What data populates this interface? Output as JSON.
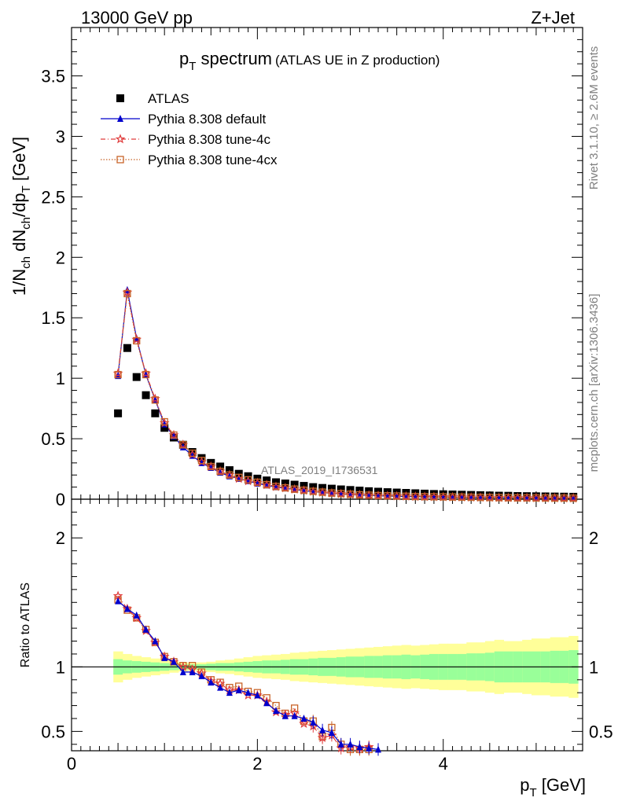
{
  "header": {
    "left": "13000 GeV pp",
    "right": "Z+Jet"
  },
  "side_labels": {
    "rivet": "Rivet 3.1.10, ≥ 2.6M events",
    "mcplots": "mcplots.cern.ch [arXiv:1306.3436]"
  },
  "watermark": "ATLAS_2019_I1736531",
  "colors": {
    "atlas": "#000000",
    "default": "#0000cc",
    "tune4c": "#e03c3c",
    "tune4cx": "#c86428",
    "band_inner": "#99ff99",
    "band_outer": "#ffff99"
  },
  "chart_data": {
    "type": "scatter",
    "title": "p_T spectrum",
    "title_main": "p",
    "title_sub": "T",
    "title_rest": " spectrum",
    "title_note": "(ATLAS UE in Z production)",
    "xlabel_main": "p",
    "xlabel_sub": "T",
    "xlabel_unit": " [GeV]",
    "ylabel": "1/N_ch dN_ch/dp_T [GeV]",
    "ylabel_parts": {
      "a": "1/N",
      "b": "ch",
      "c": " dN",
      "d": "ch",
      "e": "/dp",
      "f": "T",
      "g": " [GeV]"
    },
    "ratio_ylabel": "Ratio to ATLAS",
    "xlim": [
      0,
      5.5
    ],
    "ylim": [
      0,
      3.9
    ],
    "ratio_ylim": [
      0.35,
      2.3
    ],
    "x_ticks": [
      0,
      2,
      4
    ],
    "y_ticks": [
      0,
      0.5,
      1,
      1.5,
      2,
      2.5,
      3,
      3.5
    ],
    "y_tick_labels": [
      "0",
      "0.5",
      "1",
      "1.5",
      "2",
      "2.5",
      "3",
      "3.5"
    ],
    "ratio_ticks": [
      0.5,
      1,
      2
    ],
    "ratio_tick_labels": [
      "0.5",
      "1",
      "2"
    ],
    "x_tick_labels": [
      "0",
      "2",
      "4"
    ],
    "legend_position": "top-left",
    "x": [
      0.5,
      0.6,
      0.7,
      0.8,
      0.9,
      1.0,
      1.1,
      1.2,
      1.3,
      1.4,
      1.5,
      1.6,
      1.7,
      1.8,
      1.9,
      2.0,
      2.1,
      2.2,
      2.3,
      2.4,
      2.5,
      2.6,
      2.7,
      2.8,
      2.9,
      3.0,
      3.1,
      3.2,
      3.3,
      3.4,
      3.5,
      3.6,
      3.7,
      3.8,
      3.9,
      4.0,
      4.1,
      4.2,
      4.3,
      4.4,
      4.5,
      4.6,
      4.7,
      4.8,
      4.9,
      5.0,
      5.1,
      5.2,
      5.3,
      5.4
    ],
    "series": [
      {
        "name": "ATLAS",
        "marker": "square",
        "values": [
          0.71,
          1.25,
          1.01,
          0.86,
          0.71,
          0.59,
          0.51,
          0.45,
          0.39,
          0.34,
          0.3,
          0.27,
          0.24,
          0.21,
          0.19,
          0.17,
          0.155,
          0.14,
          0.13,
          0.12,
          0.11,
          0.1,
          0.093,
          0.087,
          0.081,
          0.076,
          0.071,
          0.066,
          0.062,
          0.058,
          0.055,
          0.052,
          0.049,
          0.046,
          0.043,
          0.041,
          0.039,
          0.037,
          0.035,
          0.033,
          0.031,
          0.029,
          0.028,
          0.026,
          0.025,
          0.024,
          0.023,
          0.022,
          0.021,
          0.02
        ]
      },
      {
        "name": "Pythia 8.308 default",
        "marker": "triangle",
        "line": "solid",
        "values": [
          1.02,
          1.73,
          1.33,
          1.03,
          0.82,
          0.62,
          0.52,
          0.43,
          0.36,
          0.3,
          0.26,
          0.22,
          0.19,
          0.17,
          0.15,
          0.13,
          0.115,
          0.1,
          0.09,
          0.08,
          0.07,
          0.062,
          0.055,
          0.048,
          0.043,
          0.038,
          0.034,
          0.031,
          0.028,
          0.026,
          0.024,
          0.022,
          0.02,
          0.019,
          0.018,
          0.017,
          0.016,
          0.015,
          0.014,
          0.013,
          0.012,
          0.012,
          0.011,
          0.01,
          0.01,
          0.009,
          0.009,
          0.008,
          0.008,
          0.008
        ]
      },
      {
        "name": "Pythia 8.308 tune-4c",
        "marker": "star",
        "line": "dashdot",
        "values": [
          1.04,
          1.71,
          1.32,
          1.04,
          0.83,
          0.63,
          0.53,
          0.45,
          0.37,
          0.31,
          0.27,
          0.23,
          0.2,
          0.17,
          0.15,
          0.135,
          0.118,
          0.103,
          0.092,
          0.081,
          0.072,
          0.063,
          0.056,
          0.049,
          0.044,
          0.039,
          0.035,
          0.032,
          0.029,
          0.027,
          0.025,
          0.023,
          0.021,
          0.02,
          0.019,
          0.018,
          0.017,
          0.016,
          0.015,
          0.014,
          0.013,
          0.012,
          0.011,
          0.011,
          0.01,
          0.01,
          0.009,
          0.009,
          0.008,
          0.008
        ]
      },
      {
        "name": "Pythia 8.308 tune-4cx",
        "marker": "opensquare",
        "line": "dotted",
        "values": [
          1.03,
          1.7,
          1.31,
          1.03,
          0.82,
          0.64,
          0.53,
          0.45,
          0.38,
          0.32,
          0.27,
          0.23,
          0.2,
          0.18,
          0.16,
          0.14,
          0.12,
          0.105,
          0.094,
          0.083,
          0.074,
          0.065,
          0.058,
          0.051,
          0.046,
          0.041,
          0.036,
          0.033,
          0.03,
          0.028,
          0.026,
          0.024,
          0.022,
          0.021,
          0.02,
          0.019,
          0.018,
          0.017,
          0.016,
          0.015,
          0.014,
          0.013,
          0.012,
          0.011,
          0.011,
          0.01,
          0.01,
          0.009,
          0.009,
          0.008
        ]
      }
    ],
    "ratio": {
      "default": [
        [
          0.5,
          1.51
        ],
        [
          0.6,
          1.45
        ],
        [
          0.7,
          1.4
        ],
        [
          0.8,
          1.29
        ],
        [
          0.9,
          1.2
        ],
        [
          1.0,
          1.07
        ],
        [
          1.1,
          1.04
        ],
        [
          1.2,
          0.96
        ],
        [
          1.3,
          0.96
        ],
        [
          1.4,
          0.93
        ],
        [
          1.5,
          0.88
        ],
        [
          1.6,
          0.84
        ],
        [
          1.7,
          0.8
        ],
        [
          1.8,
          0.82
        ],
        [
          1.9,
          0.8
        ],
        [
          2.0,
          0.78
        ],
        [
          2.1,
          0.72
        ],
        [
          2.2,
          0.66
        ],
        [
          2.3,
          0.62
        ],
        [
          2.4,
          0.62
        ],
        [
          2.5,
          0.6
        ],
        [
          2.6,
          0.57
        ],
        [
          2.7,
          0.51
        ],
        [
          2.8,
          0.49
        ],
        [
          2.9,
          0.4
        ],
        [
          3.0,
          0.4
        ],
        [
          3.1,
          0.38
        ],
        [
          3.2,
          0.37
        ],
        [
          3.3,
          0.36
        ]
      ],
      "tune4c": [
        [
          0.5,
          1.55
        ],
        [
          0.6,
          1.45
        ],
        [
          0.7,
          1.38
        ],
        [
          0.8,
          1.28
        ],
        [
          0.9,
          1.19
        ],
        [
          1.0,
          1.08
        ],
        [
          1.1,
          1.04
        ],
        [
          1.2,
          1.0
        ],
        [
          1.3,
          0.98
        ],
        [
          1.4,
          0.95
        ],
        [
          1.5,
          0.89
        ],
        [
          1.6,
          0.87
        ],
        [
          1.7,
          0.82
        ],
        [
          1.8,
          0.82
        ],
        [
          1.9,
          0.78
        ],
        [
          2.0,
          0.78
        ],
        [
          2.1,
          0.73
        ],
        [
          2.2,
          0.65
        ],
        [
          2.3,
          0.63
        ],
        [
          2.4,
          0.64
        ],
        [
          2.5,
          0.56
        ],
        [
          2.6,
          0.54
        ],
        [
          2.7,
          0.45
        ],
        [
          2.8,
          0.47
        ],
        [
          2.9,
          0.37
        ],
        [
          3.0,
          0.38
        ],
        [
          3.1,
          0.37
        ],
        [
          3.2,
          0.38
        ]
      ],
      "tune4cx": [
        [
          0.5,
          1.52
        ],
        [
          0.6,
          1.44
        ],
        [
          0.7,
          1.38
        ],
        [
          0.8,
          1.29
        ],
        [
          0.9,
          1.19
        ],
        [
          1.0,
          1.08
        ],
        [
          1.1,
          1.04
        ],
        [
          1.2,
          1.01
        ],
        [
          1.3,
          1.01
        ],
        [
          1.4,
          0.96
        ],
        [
          1.5,
          0.9
        ],
        [
          1.6,
          0.88
        ],
        [
          1.7,
          0.84
        ],
        [
          1.8,
          0.85
        ],
        [
          1.9,
          0.81
        ],
        [
          2.0,
          0.8
        ],
        [
          2.1,
          0.76
        ],
        [
          2.2,
          0.7
        ],
        [
          2.3,
          0.64
        ],
        [
          2.4,
          0.68
        ],
        [
          2.5,
          0.58
        ],
        [
          2.6,
          0.58
        ],
        [
          2.7,
          0.46
        ],
        [
          2.8,
          0.53
        ],
        [
          2.9,
          0.4
        ],
        [
          3.0,
          0.36
        ],
        [
          3.1,
          0.36
        ],
        [
          3.2,
          0.36
        ]
      ]
    },
    "band_x": [
      0.45,
      0.55,
      0.65,
      0.75,
      0.85,
      0.95,
      1.05,
      1.15,
      1.25,
      1.35,
      1.45,
      1.55,
      1.65,
      1.75,
      1.85,
      1.95,
      2.05,
      2.15,
      2.25,
      2.35,
      2.45,
      2.55,
      2.65,
      2.75,
      2.85,
      2.95,
      3.05,
      3.15,
      3.25,
      3.35,
      3.45,
      3.55,
      3.65,
      3.75,
      3.85,
      3.95,
      4.05,
      4.15,
      4.25,
      4.35,
      4.45,
      4.55,
      4.65,
      4.75,
      4.85,
      4.95,
      5.05,
      5.15,
      5.25,
      5.35,
      5.45
    ],
    "band_inner": [
      0.06,
      0.05,
      0.045,
      0.04,
      0.035,
      0.03,
      0.025,
      0.02,
      0.02,
      0.02,
      0.025,
      0.03,
      0.03,
      0.035,
      0.04,
      0.045,
      0.05,
      0.05,
      0.055,
      0.06,
      0.06,
      0.065,
      0.07,
      0.07,
      0.075,
      0.08,
      0.08,
      0.085,
      0.085,
      0.09,
      0.09,
      0.095,
      0.09,
      0.095,
      0.1,
      0.1,
      0.1,
      0.1,
      0.105,
      0.105,
      0.11,
      0.12,
      0.12,
      0.12,
      0.12,
      0.12,
      0.12,
      0.125,
      0.125,
      0.13,
      0.13
    ],
    "band_outer": [
      0.12,
      0.1,
      0.085,
      0.075,
      0.065,
      0.055,
      0.045,
      0.035,
      0.03,
      0.035,
      0.04,
      0.05,
      0.055,
      0.065,
      0.075,
      0.085,
      0.09,
      0.095,
      0.1,
      0.11,
      0.115,
      0.12,
      0.125,
      0.13,
      0.135,
      0.14,
      0.145,
      0.15,
      0.155,
      0.16,
      0.165,
      0.17,
      0.165,
      0.17,
      0.175,
      0.18,
      0.18,
      0.18,
      0.19,
      0.19,
      0.2,
      0.21,
      0.2,
      0.2,
      0.21,
      0.22,
      0.22,
      0.23,
      0.23,
      0.24,
      0.24
    ]
  }
}
